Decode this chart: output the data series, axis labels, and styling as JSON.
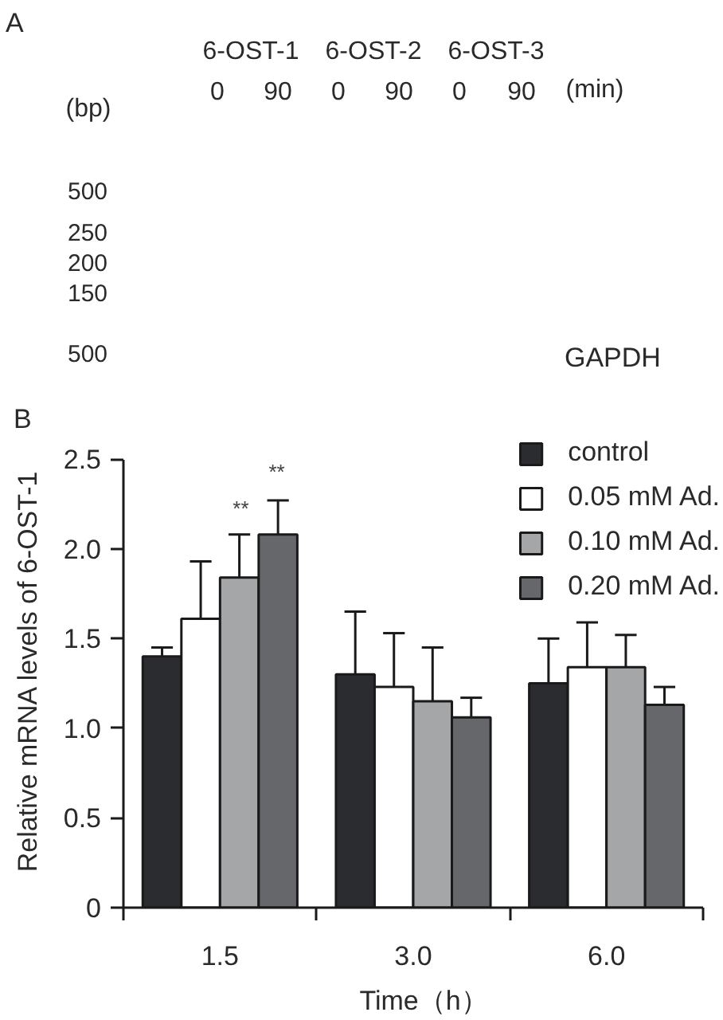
{
  "chart_data": [
    {
      "type": "other",
      "annotations": [
        "A",
        "6-OST-1",
        "6-OST-2",
        "6-OST-3",
        "0",
        "90",
        "0",
        "90",
        "0",
        "90",
        "(min)",
        "(bp)",
        "500",
        "250",
        "200",
        "150",
        "500",
        "GAPDH"
      ]
    },
    {
      "type": "bar",
      "categories": [
        "1.5",
        "3.0",
        "6.0"
      ],
      "xlabel": "Time（h）",
      "ylabel": "Relative mRNA levels of 6-OST-1",
      "ylim": [
        0,
        2.5
      ],
      "yticks": [
        0,
        0.5,
        {
          "value": 1,
          "label": "1.0"
        },
        1.5,
        {
          "value": 2,
          "label": "2.0"
        },
        2.5
      ],
      "legend": "top right",
      "series": [
        {
          "name": "control",
          "color": "#2b2c30",
          "values": [
            1.4,
            1.3,
            1.25
          ],
          "errors": [
            [
              1.4,
              1.45
            ],
            [
              1.3,
              1.65
            ],
            [
              1.25,
              1.5
            ]
          ]
        },
        {
          "name": "0.05 mM Ad.",
          "color": "#ffffff",
          "values": [
            1.61,
            1.23,
            1.34
          ],
          "errors": [
            [
              1.61,
              1.93
            ],
            [
              1.23,
              1.53
            ],
            [
              1.34,
              1.59
            ]
          ]
        },
        {
          "name": "0.10 mM Ad.",
          "color": "#a5a6a8",
          "values": [
            1.84,
            1.15,
            1.34
          ],
          "errors": [
            [
              1.84,
              2.08
            ],
            [
              1.15,
              1.45
            ],
            [
              1.34,
              1.52
            ]
          ]
        },
        {
          "name": "0.20 mM Ad.",
          "color": "#66676a",
          "values": [
            2.08,
            1.06,
            1.13
          ],
          "errors": [
            [
              2.08,
              2.27
            ],
            [
              1.06,
              1.17
            ],
            [
              1.13,
              1.23
            ]
          ]
        }
      ],
      "annotations": [
        "B",
        "**",
        "**"
      ]
    }
  ]
}
